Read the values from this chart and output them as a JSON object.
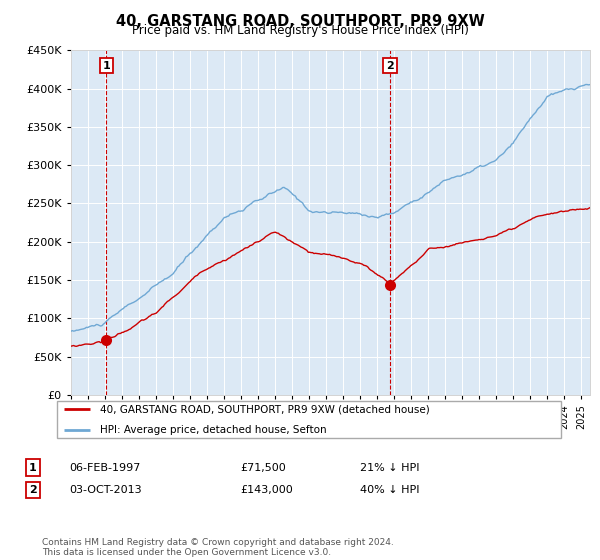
{
  "title": "40, GARSTANG ROAD, SOUTHPORT, PR9 9XW",
  "subtitle": "Price paid vs. HM Land Registry's House Price Index (HPI)",
  "ylim": [
    0,
    450000
  ],
  "yticks": [
    0,
    50000,
    100000,
    150000,
    200000,
    250000,
    300000,
    350000,
    400000,
    450000
  ],
  "sale1_year": 1997.096,
  "sale1_price": 71500,
  "sale2_year": 2013.75,
  "sale2_price": 143000,
  "legend_line1": "40, GARSTANG ROAD, SOUTHPORT, PR9 9XW (detached house)",
  "legend_line2": "HPI: Average price, detached house, Sefton",
  "footer": "Contains HM Land Registry data © Crown copyright and database right 2024.\nThis data is licensed under the Open Government Licence v3.0.",
  "red_color": "#cc0000",
  "blue_color": "#6fa8d4",
  "plot_bg": "#dce9f5",
  "table_row1": [
    "1",
    "06-FEB-1997",
    "£71,500",
    "21% ↓ HPI"
  ],
  "table_row2": [
    "2",
    "03-OCT-2013",
    "£143,000",
    "40% ↓ HPI"
  ],
  "xmin": 1995.0,
  "xmax": 2025.5
}
